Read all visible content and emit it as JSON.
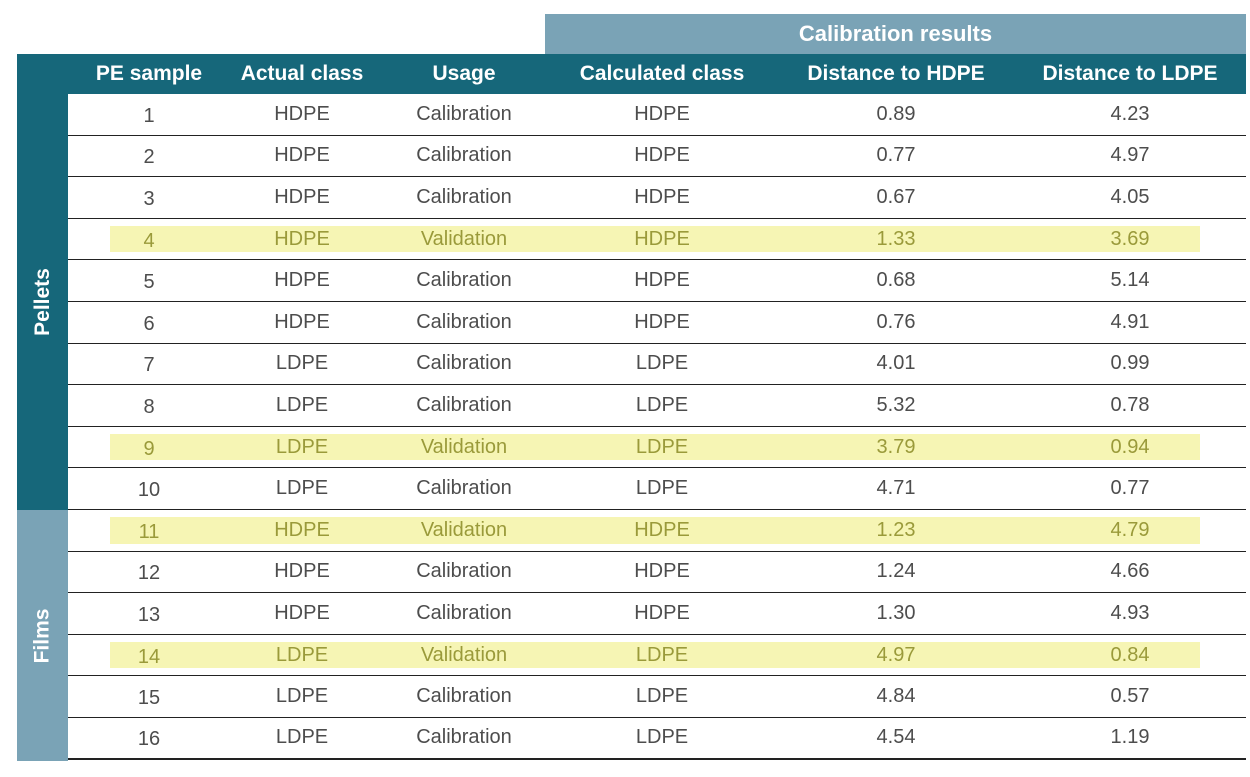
{
  "table": {
    "super_header": "Calibration results",
    "headers": [
      "PE sample",
      "Actual class",
      "Usage",
      "Calculated class",
      "Distance to HDPE",
      "Distance to LDPE"
    ],
    "groups": [
      "Pellets",
      "Films"
    ],
    "highlight_color": "#f6f5b4",
    "header_color": "#16677a",
    "secondary_header_color": "#7aa3b6",
    "rows": [
      {
        "sample": "1",
        "actual": "HDPE",
        "usage": "Calibration",
        "calculated": "HDPE",
        "d_hdpe": "0.89",
        "d_ldpe": "4.23",
        "highlight": false
      },
      {
        "sample": "2",
        "actual": "HDPE",
        "usage": "Calibration",
        "calculated": "HDPE",
        "d_hdpe": "0.77",
        "d_ldpe": "4.97",
        "highlight": false
      },
      {
        "sample": "3",
        "actual": "HDPE",
        "usage": "Calibration",
        "calculated": "HDPE",
        "d_hdpe": "0.67",
        "d_ldpe": "4.05",
        "highlight": false
      },
      {
        "sample": "4",
        "actual": "HDPE",
        "usage": "Validation",
        "calculated": "HDPE",
        "d_hdpe": "1.33",
        "d_ldpe": "3.69",
        "highlight": true
      },
      {
        "sample": "5",
        "actual": "HDPE",
        "usage": "Calibration",
        "calculated": "HDPE",
        "d_hdpe": "0.68",
        "d_ldpe": "5.14",
        "highlight": false
      },
      {
        "sample": "6",
        "actual": "HDPE",
        "usage": "Calibration",
        "calculated": "HDPE",
        "d_hdpe": "0.76",
        "d_ldpe": "4.91",
        "highlight": false
      },
      {
        "sample": "7",
        "actual": "LDPE",
        "usage": "Calibration",
        "calculated": "LDPE",
        "d_hdpe": "4.01",
        "d_ldpe": "0.99",
        "highlight": false
      },
      {
        "sample": "8",
        "actual": "LDPE",
        "usage": "Calibration",
        "calculated": "LDPE",
        "d_hdpe": "5.32",
        "d_ldpe": "0.78",
        "highlight": false
      },
      {
        "sample": "9",
        "actual": "LDPE",
        "usage": "Validation",
        "calculated": "LDPE",
        "d_hdpe": "3.79",
        "d_ldpe": "0.94",
        "highlight": true
      },
      {
        "sample": "10",
        "actual": "LDPE",
        "usage": "Calibration",
        "calculated": "LDPE",
        "d_hdpe": "4.71",
        "d_ldpe": "0.77",
        "highlight": false
      },
      {
        "sample": "11",
        "actual": "HDPE",
        "usage": "Validation",
        "calculated": "HDPE",
        "d_hdpe": "1.23",
        "d_ldpe": "4.79",
        "highlight": true
      },
      {
        "sample": "12",
        "actual": "HDPE",
        "usage": "Calibration",
        "calculated": "HDPE",
        "d_hdpe": "1.24",
        "d_ldpe": "4.66",
        "highlight": false
      },
      {
        "sample": "13",
        "actual": "HDPE",
        "usage": "Calibration",
        "calculated": "HDPE",
        "d_hdpe": "1.30",
        "d_ldpe": "4.93",
        "highlight": false
      },
      {
        "sample": "14",
        "actual": "LDPE",
        "usage": "Validation",
        "calculated": "LDPE",
        "d_hdpe": "4.97",
        "d_ldpe": "0.84",
        "highlight": true
      },
      {
        "sample": "15",
        "actual": "LDPE",
        "usage": "Calibration",
        "calculated": "LDPE",
        "d_hdpe": "4.84",
        "d_ldpe": "0.57",
        "highlight": false
      },
      {
        "sample": "16",
        "actual": "LDPE",
        "usage": "Calibration",
        "calculated": "LDPE",
        "d_hdpe": "4.54",
        "d_ldpe": "1.19",
        "highlight": false
      }
    ]
  }
}
